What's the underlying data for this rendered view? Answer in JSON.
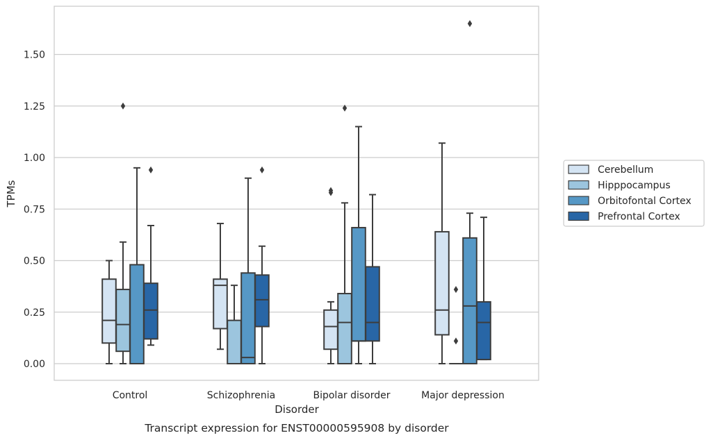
{
  "chart_data": {
    "type": "box",
    "xlabel": "Disorder",
    "ylabel": "TPMs",
    "caption": "Transcript expression for ENST00000595908 by disorder",
    "ylim": [
      -0.08,
      1.74
    ],
    "yticks": [
      "0.00",
      "0.25",
      "0.50",
      "0.75",
      "1.00",
      "1.25",
      "1.50"
    ],
    "grid": "horizontal",
    "legend_position": "right",
    "categories": [
      "Control",
      "Schizophrenia",
      "Bipolar disorder",
      "Major depression"
    ],
    "series": [
      {
        "name": "Cerebellum",
        "color": "#d4e4f3",
        "boxes": [
          {
            "min": 0.0,
            "q1": 0.1,
            "median": 0.21,
            "q3": 0.41,
            "max": 0.5,
            "outliers": []
          },
          {
            "min": 0.07,
            "q1": 0.17,
            "median": 0.38,
            "q3": 0.41,
            "max": 0.68,
            "outliers": []
          },
          {
            "min": 0.0,
            "q1": 0.07,
            "median": 0.18,
            "q3": 0.26,
            "max": 0.3,
            "outliers": [
              0.83,
              0.84
            ]
          },
          {
            "min": 0.0,
            "q1": 0.14,
            "median": 0.26,
            "q3": 0.64,
            "max": 1.07,
            "outliers": []
          }
        ]
      },
      {
        "name": "Hipppocampus",
        "color": "#9cc5de",
        "boxes": [
          {
            "min": 0.0,
            "q1": 0.06,
            "median": 0.19,
            "q3": 0.36,
            "max": 0.59,
            "outliers": [
              1.25
            ]
          },
          {
            "min": 0.0,
            "q1": 0.0,
            "median": 0.0,
            "q3": 0.21,
            "max": 0.38,
            "outliers": []
          },
          {
            "min": 0.0,
            "q1": 0.0,
            "median": 0.2,
            "q3": 0.34,
            "max": 0.78,
            "outliers": [
              1.24
            ]
          },
          {
            "min": 0.0,
            "q1": 0.0,
            "median": 0.0,
            "q3": 0.0,
            "max": 0.0,
            "outliers": [
              0.11,
              0.36
            ]
          }
        ]
      },
      {
        "name": "Orbitofontal Cortex",
        "color": "#5698c6",
        "boxes": [
          {
            "min": 0.0,
            "q1": 0.0,
            "median": 0.0,
            "q3": 0.48,
            "max": 0.95,
            "outliers": []
          },
          {
            "min": 0.0,
            "q1": 0.0,
            "median": 0.03,
            "q3": 0.44,
            "max": 0.9,
            "outliers": []
          },
          {
            "min": 0.0,
            "q1": 0.11,
            "median": 0.11,
            "q3": 0.66,
            "max": 1.15,
            "outliers": []
          },
          {
            "min": 0.0,
            "q1": 0.0,
            "median": 0.28,
            "q3": 0.61,
            "max": 0.73,
            "outliers": [
              1.65
            ]
          }
        ]
      },
      {
        "name": "Prefrontal Cortex",
        "color": "#2866a6",
        "boxes": [
          {
            "min": 0.09,
            "q1": 0.12,
            "median": 0.26,
            "q3": 0.39,
            "max": 0.67,
            "outliers": [
              0.94
            ]
          },
          {
            "min": 0.0,
            "q1": 0.18,
            "median": 0.31,
            "q3": 0.43,
            "max": 0.57,
            "outliers": [
              0.94
            ]
          },
          {
            "min": 0.0,
            "q1": 0.11,
            "median": 0.2,
            "q3": 0.47,
            "max": 0.82,
            "outliers": []
          },
          {
            "min": 0.02,
            "q1": 0.02,
            "median": 0.2,
            "q3": 0.3,
            "max": 0.71,
            "outliers": []
          }
        ]
      }
    ]
  }
}
